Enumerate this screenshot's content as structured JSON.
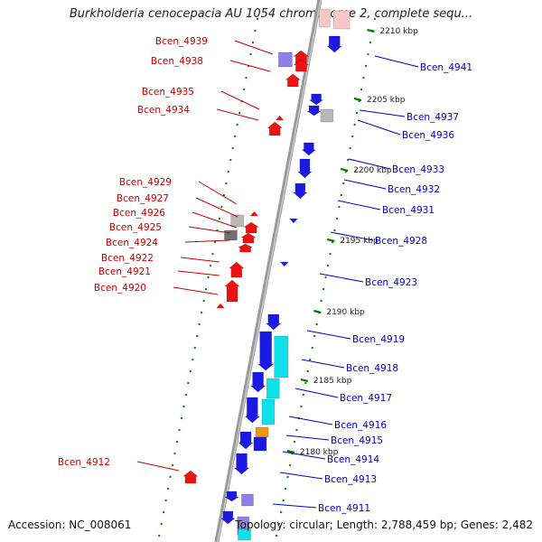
{
  "title": "Burkholderia cenocepacia AU 1054 chromosome 2, complete sequ...",
  "accession": "Accession: NC_008061",
  "topology": "Topology: circular; Length: 2,788,459 bp; Genes: 2,482",
  "colors": {
    "forward_gene": "#ee1111",
    "reverse_gene": "#1a1ae0",
    "forward_label": "#cc0000",
    "reverse_label": "#0000cc",
    "tick": "#008000",
    "backbone": "#888888",
    "cyan_feature": "#11e0e8",
    "orange_feature": "#f2960a",
    "grey_feature": "#b8b8b8",
    "purple_feature": "#8f7fe6"
  },
  "scale_labels": [
    "2210 kbp",
    "2205 kbp",
    "2200 kbp",
    "2195 kbp",
    "2190 kbp",
    "2185 kbp",
    "2180 kbp"
  ],
  "left_genes": [
    "Bcen_4939",
    "Bcen_4938",
    "Bcen_4935",
    "Bcen_4934",
    "Bcen_4929",
    "Bcen_4927",
    "Bcen_4926",
    "Bcen_4925",
    "Bcen_4924",
    "Bcen_4922",
    "Bcen_4921",
    "Bcen_4920",
    "Bcen_4912"
  ],
  "right_genes": [
    "Bcen_4941",
    "Bcen_4937",
    "Bcen_4936",
    "Bcen_4933",
    "Bcen_4932",
    "Bcen_4931",
    "Bcen_4928",
    "Bcen_4923",
    "Bcen_4919",
    "Bcen_4918",
    "Bcen_4917",
    "Bcen_4916",
    "Bcen_4915",
    "Bcen_4914",
    "Bcen_4913",
    "Bcen_4911"
  ]
}
